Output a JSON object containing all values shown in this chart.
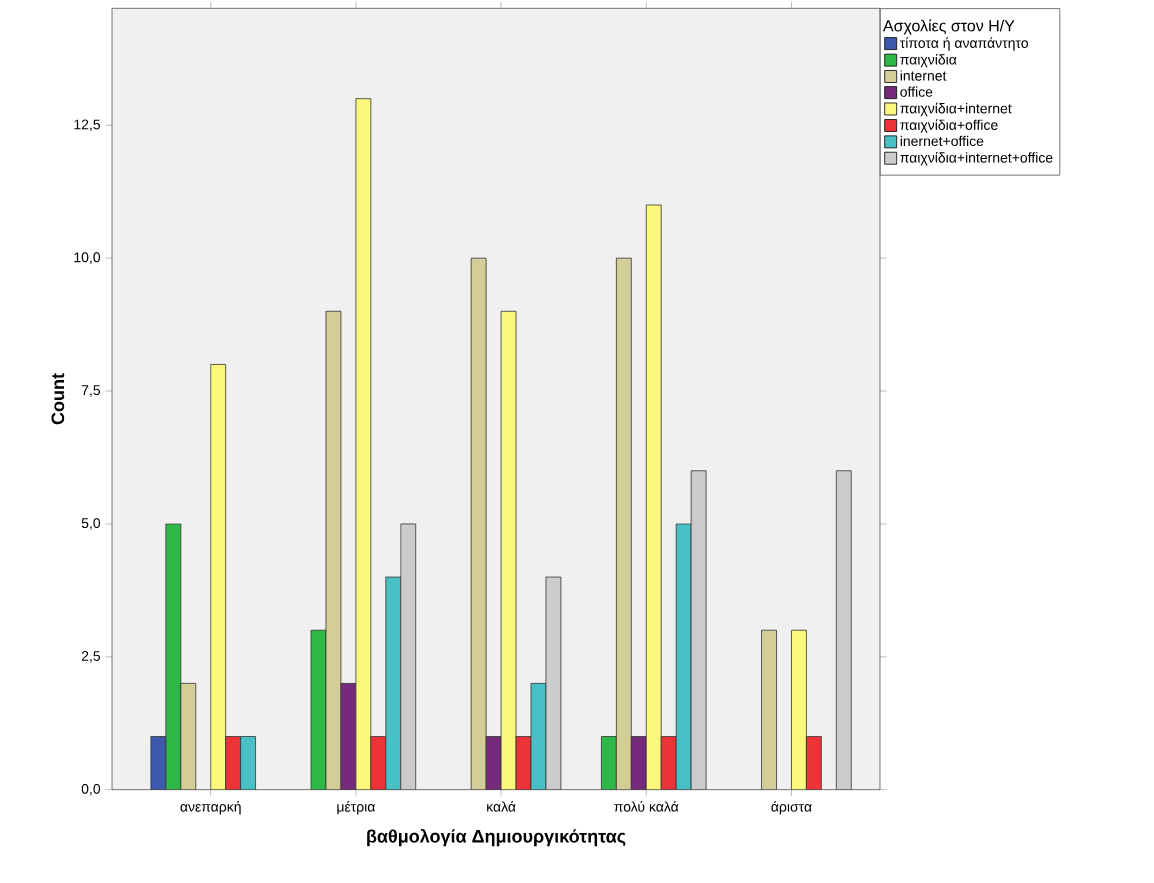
{
  "chart_data": {
    "type": "bar",
    "xlabel": "βαθμολογία Δημιουργικότητας",
    "ylabel": "Count",
    "legend_title": "Ασχολίες στον Η/Υ",
    "categories": [
      "ανεπαρκή",
      "μέτρια",
      "καλά",
      "πολύ καλά",
      "άριστα"
    ],
    "series": [
      {
        "name": "τίποτα ή αναπάντητο",
        "color": "#3e58ac",
        "values": [
          1,
          null,
          null,
          null,
          null
        ]
      },
      {
        "name": "παιχνίδια",
        "color": "#2eb848",
        "values": [
          5,
          3,
          null,
          1,
          null
        ]
      },
      {
        "name": "internet",
        "color": "#d3ce97",
        "values": [
          2,
          9,
          10,
          10,
          3
        ]
      },
      {
        "name": "office",
        "color": "#752a7c",
        "values": [
          null,
          2,
          1,
          1,
          null
        ]
      },
      {
        "name": "παιχνίδια+internet",
        "color": "#fbf87e",
        "values": [
          8,
          13,
          9,
          11,
          3
        ]
      },
      {
        "name": "παιχνίδια+office",
        "color": "#ed3338",
        "values": [
          1,
          1,
          1,
          1,
          1
        ]
      },
      {
        "name": "inernet+office",
        "color": "#48c0c6",
        "values": [
          1,
          4,
          2,
          5,
          null
        ]
      },
      {
        "name": "παιχνίδια+internet+office",
        "color": "#cccccc",
        "values": [
          null,
          5,
          4,
          6,
          6
        ]
      }
    ],
    "ylim": [
      0,
      14.7
    ],
    "yticks": [
      {
        "value": 0,
        "label": "0,0"
      },
      {
        "value": 2.5,
        "label": "2,5"
      },
      {
        "value": 5,
        "label": "5,0"
      },
      {
        "value": 7.5,
        "label": "7,5"
      },
      {
        "value": 10,
        "label": "10,0"
      },
      {
        "value": 12.5,
        "label": "12,5"
      }
    ],
    "grid": false,
    "legend": "right"
  }
}
